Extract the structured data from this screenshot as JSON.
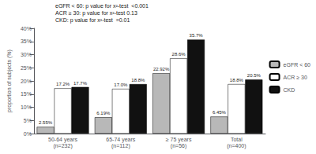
{
  "chart_data": {
    "type": "bar",
    "categories": [
      "50-64 years\n(n=232)",
      "65-74 years\n(n=112)",
      "≥ 75 years\n(n=56)",
      "Total\n(n=400)"
    ],
    "series": [
      {
        "name": "eGFR < 60",
        "color": "#b8b8b8",
        "values": [
          2.55,
          6.19,
          22.92,
          6.45
        ],
        "value_labels": [
          "2.55%",
          "6.19%",
          "22.92%",
          "6.45%"
        ]
      },
      {
        "name": "ACR ≥ 30",
        "color": "#ffffff",
        "values": [
          17.2,
          17.0,
          28.6,
          18.8
        ],
        "value_labels": [
          "17.2%",
          "17.0%",
          "28.6%",
          "18.8%"
        ]
      },
      {
        "name": "CKD",
        "color": "#111111",
        "values": [
          17.7,
          18.8,
          35.7,
          20.5
        ],
        "value_labels": [
          "17.7%",
          "18.8%",
          "35.7%",
          "20.5%"
        ]
      }
    ],
    "ylabel": "proportion of subjects (%)",
    "ylim": [
      0,
      40
    ],
    "yticks": [
      {
        "value": 0,
        "label": "0%"
      },
      {
        "value": 5,
        "label": "5%"
      },
      {
        "value": 10,
        "label": "10%"
      },
      {
        "value": 15,
        "label": "15%"
      },
      {
        "value": 20,
        "label": "20%"
      },
      {
        "value": 25,
        "label": "25%"
      },
      {
        "value": 30,
        "label": "30%"
      },
      {
        "value": 35,
        "label": "35%"
      },
      {
        "value": 40,
        "label": "40%"
      }
    ],
    "annotation": "eGFR < 60: p value for x²-test  <0.001\nACR ≥ 30: p value for x²-test 0.13\nCKD: p value for x²-test  =0.01",
    "legend": "right",
    "grid": false,
    "data_labels": true
  }
}
